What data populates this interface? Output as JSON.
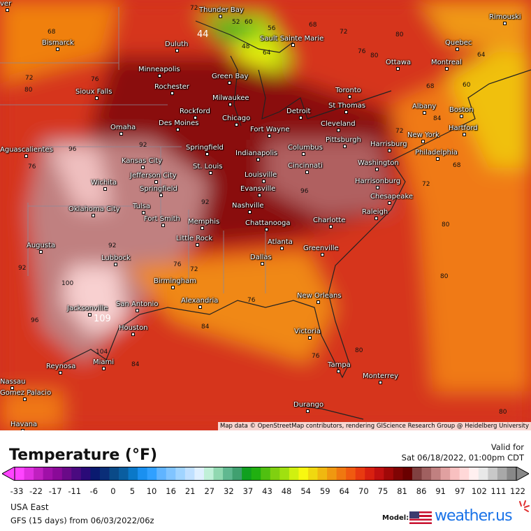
{
  "map": {
    "cities": [
      "Thunder Bay",
      "Duluth",
      "Sault Sainte Marie",
      "Bismarck",
      "Rimouski",
      "Quebec",
      "Ottawa",
      "Montreal",
      "Minneapolis",
      "Green Bay",
      "Rochester",
      "Sioux Falls",
      "Milwaukee",
      "Toronto",
      "Rockford",
      "Chicago",
      "Detroit",
      "St Thomas",
      "Albany",
      "Boston",
      "Omaha",
      "Des Moines",
      "Fort Wayne",
      "Cleveland",
      "Hartford",
      "New York",
      "Springfield",
      "Indianapolis",
      "Columbus",
      "Pittsburgh",
      "Harrisburg",
      "Philadelphia",
      "Kansas City",
      "Jefferson City",
      "St. Louis",
      "Louisville",
      "Cincinnati",
      "Washington",
      "Wichita",
      "Springfield",
      "Evansville",
      "Harrisonburg",
      "Chesapeake",
      "Oklahoma City",
      "Tulsa",
      "Nashville",
      "Fort Smith",
      "Memphis",
      "Chattanooga",
      "Charlotte",
      "Raleigh",
      "Little Rock",
      "Atlanta",
      "Greenville",
      "Augusta",
      "Lubbock",
      "Dallas",
      "Birmingham",
      "Alexandria",
      "New Orleans",
      "Jacksonville",
      "San Antonio",
      "Houston",
      "Victoria",
      "Tampa",
      "Miami",
      "Reynosa",
      "Monterrey",
      "Nassau",
      "Gomez Palacio",
      "Durango",
      "Havana",
      "Aguascalientes",
      "ver"
    ],
    "temps": [
      "72",
      "52",
      "60",
      "68",
      "72",
      "76",
      "64",
      "68",
      "56",
      "48",
      "64",
      "44",
      "80",
      "76",
      "72",
      "80",
      "68",
      "60",
      "72",
      "80",
      "84",
      "96",
      "92",
      "96",
      "92",
      "96",
      "92",
      "100",
      "92",
      "109",
      "104",
      "84",
      "76",
      "72",
      "76",
      "80",
      "76",
      "80",
      "68",
      "72",
      "76",
      "84",
      "80",
      "80"
    ],
    "attribution": "Map data © OpenStreetMap contributors, rendering GIScience Research Group @ Heidelberg University"
  },
  "legend": {
    "title": "Temperature (°F)",
    "valid_label": "Valid for",
    "valid_time": "Sat 06/18/2022, 01:00pm CDT",
    "ticks": [
      "-33",
      "-22",
      "-17",
      "-11",
      "-6",
      "0",
      "5",
      "10",
      "16",
      "21",
      "27",
      "32",
      "37",
      "43",
      "48",
      "54",
      "59",
      "64",
      "70",
      "75",
      "81",
      "86",
      "91",
      "97",
      "102",
      "111",
      "122"
    ],
    "colors": [
      "#ff44ff",
      "#e030e0",
      "#c020c0",
      "#a010a8",
      "#8a0a98",
      "#6a0a88",
      "#4a0a80",
      "#2a0a78",
      "#0a1a70",
      "#0a2e78",
      "#0a4a88",
      "#0a5ea0",
      "#0a78c8",
      "#1a90f0",
      "#30a0ff",
      "#60b4ff",
      "#80c4ff",
      "#a0d4ff",
      "#c0e0ff",
      "#e0f0ff",
      "#c0f0d8",
      "#90d8b0",
      "#60b890",
      "#40a070",
      "#10a020",
      "#20b010",
      "#50c010",
      "#80d010",
      "#a0e010",
      "#d0f010",
      "#f8f810",
      "#f0d810",
      "#f0b810",
      "#f09810",
      "#f07810",
      "#f05a10",
      "#e83a10",
      "#d82010",
      "#c01010",
      "#a00808",
      "#800404",
      "#6a0000",
      "#804040",
      "#a06060",
      "#c08080",
      "#e0a0a0",
      "#f8c0c0",
      "#ffd8d8",
      "#fff0f0",
      "#e8e8e8",
      "#c8c8c8",
      "#a8a8a8",
      "#888888"
    ],
    "region": "USA East",
    "model_run": "GFS (15 days) from  06/03/2022/06z",
    "model_label": "Model:",
    "brand": "weather.us"
  }
}
